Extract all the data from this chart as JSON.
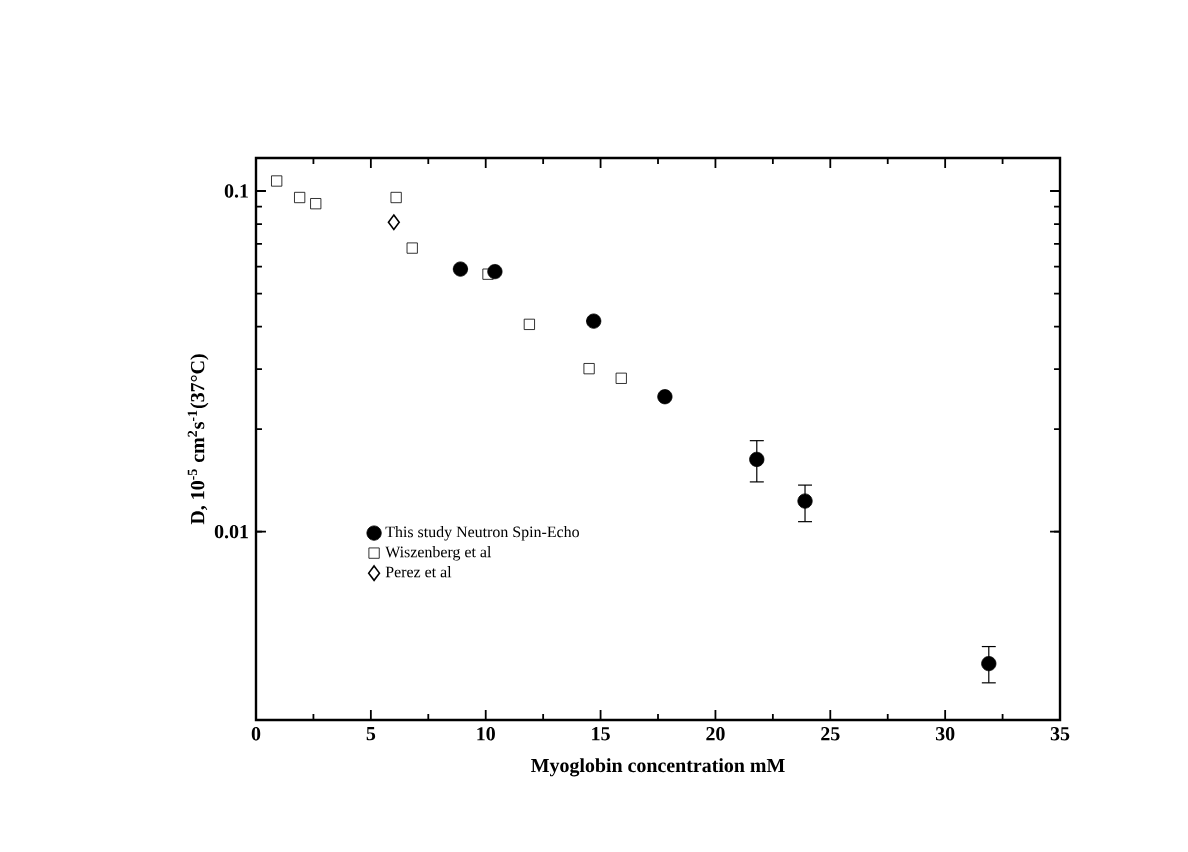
{
  "chart_data": {
    "type": "scatter",
    "xlabel": "Myoglobin concentration mM",
    "ylabel": "D, 10$^{-5}$ cm$^{2}$s$^{-1}$(37°C)",
    "log": "y",
    "xlim": [
      0,
      35
    ],
    "xticks": [
      0,
      5,
      10,
      15,
      20,
      25,
      30,
      35
    ],
    "ylim": [
      0.0028,
      0.125
    ],
    "yticks": [
      0.01,
      0.1
    ],
    "legend": "bottom left",
    "grid": false,
    "series": [
      {
        "name": "This study Neutron Spin-Echo",
        "color": "#000000",
        "marker": "circle",
        "x": [
          8.9,
          10.4,
          14.7,
          17.8,
          21.8,
          23.9,
          31.9
        ],
        "values": [
          0.059,
          0.058,
          0.0415,
          0.0249,
          0.0163,
          0.0123,
          0.0041
        ],
        "errors": [
          null,
          null,
          null,
          null,
          [
            0.014,
            0.0185
          ],
          [
            0.0107,
            0.0137
          ],
          [
            0.0036,
            0.0046
          ]
        ]
      },
      {
        "name": "Wiszenberg et al",
        "color": "#000000",
        "marker": "square",
        "x": [
          0.9,
          1.9,
          2.6,
          6.1,
          6.8,
          10.1,
          11.9,
          14.5,
          15.9
        ],
        "values": [
          0.107,
          0.0957,
          0.0918,
          0.0957,
          0.068,
          0.057,
          0.0406,
          0.0301,
          0.0282
        ]
      },
      {
        "name": "Perez et al",
        "color": "#000000",
        "marker": "diamond",
        "x": [
          6.0
        ],
        "values": [
          0.081
        ]
      }
    ]
  }
}
